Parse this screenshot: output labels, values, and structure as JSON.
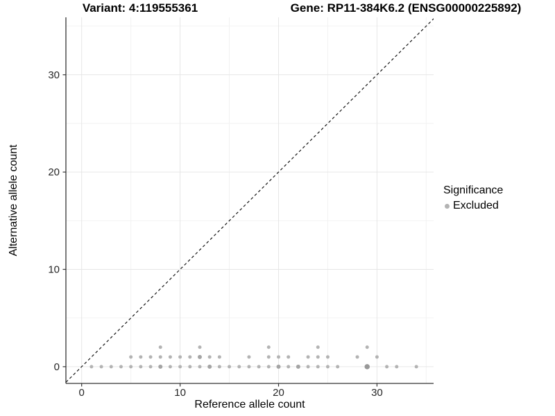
{
  "header": {
    "variant_title": "Variant: 4:119555361",
    "gene_title": "Gene: RP11-384K6.2 (ENSG00000225892)"
  },
  "chart_data": {
    "type": "scatter",
    "title": "",
    "xlabel": "Reference allele count",
    "ylabel": "Alternative allele count",
    "xlim": [
      -1.6,
      35.75
    ],
    "ylim": [
      -1.72,
      35.9
    ],
    "x_ticks": [
      0,
      10,
      20,
      30
    ],
    "y_ticks": [
      0,
      10,
      20,
      30
    ],
    "x_minor": [
      5,
      15,
      25,
      35
    ],
    "y_minor": [
      5,
      15,
      25,
      35
    ],
    "grid": true,
    "identity_line": {
      "style": "dashed",
      "slope": 1,
      "intercept": 0
    },
    "legend": {
      "title": "Significance",
      "position": "right",
      "items": [
        {
          "label": "Excluded",
          "color": "#b3b3b3"
        }
      ]
    },
    "series": [
      {
        "name": "Excluded",
        "points": [
          [
            1,
            0,
            1
          ],
          [
            2,
            0,
            1
          ],
          [
            3,
            0,
            1
          ],
          [
            4,
            0,
            1
          ],
          [
            5,
            0,
            1
          ],
          [
            6,
            0,
            1
          ],
          [
            7,
            0,
            1
          ],
          [
            8,
            0,
            1.2
          ],
          [
            9,
            0,
            1
          ],
          [
            10,
            0,
            1
          ],
          [
            11,
            0,
            1
          ],
          [
            12,
            0,
            1
          ],
          [
            13,
            0,
            1.2
          ],
          [
            14,
            0,
            1
          ],
          [
            15,
            0,
            1
          ],
          [
            16,
            0,
            1
          ],
          [
            17,
            0,
            1
          ],
          [
            18,
            0,
            1
          ],
          [
            19,
            0,
            1
          ],
          [
            20,
            0,
            1.2
          ],
          [
            21,
            0,
            1
          ],
          [
            22,
            0,
            1.2
          ],
          [
            23,
            0,
            1
          ],
          [
            24,
            0,
            1
          ],
          [
            25,
            0,
            1
          ],
          [
            26,
            0,
            1
          ],
          [
            29,
            0,
            1.5
          ],
          [
            31,
            0,
            1
          ],
          [
            32,
            0,
            1
          ],
          [
            34,
            0,
            1
          ],
          [
            5,
            1,
            1
          ],
          [
            6,
            1,
            1
          ],
          [
            7,
            1,
            1
          ],
          [
            8,
            1,
            1
          ],
          [
            9,
            1,
            1
          ],
          [
            10,
            1,
            1
          ],
          [
            11,
            1,
            1
          ],
          [
            12,
            1,
            1.2
          ],
          [
            13,
            1,
            1
          ],
          [
            14,
            1,
            1
          ],
          [
            17,
            1,
            1
          ],
          [
            19,
            1,
            1
          ],
          [
            20,
            1,
            1
          ],
          [
            21,
            1,
            1
          ],
          [
            23,
            1,
            1
          ],
          [
            24,
            1,
            1
          ],
          [
            25,
            1,
            1
          ],
          [
            28,
            1,
            1
          ],
          [
            30,
            1,
            1
          ],
          [
            8,
            2,
            1
          ],
          [
            12,
            2,
            1
          ],
          [
            19,
            2,
            1
          ],
          [
            24,
            2,
            1
          ],
          [
            29,
            2,
            1
          ]
        ]
      }
    ],
    "colors": {
      "background": "#ffffff",
      "grid_major": "#e6e6e6",
      "grid_minor": "#f2f2f2",
      "axis_line": "#333333",
      "tick_label": "#262626",
      "identity_line": "#141414",
      "point": "#b3b3b3",
      "point_mid": "#a4a4a4",
      "point_dark": "#989898"
    }
  }
}
